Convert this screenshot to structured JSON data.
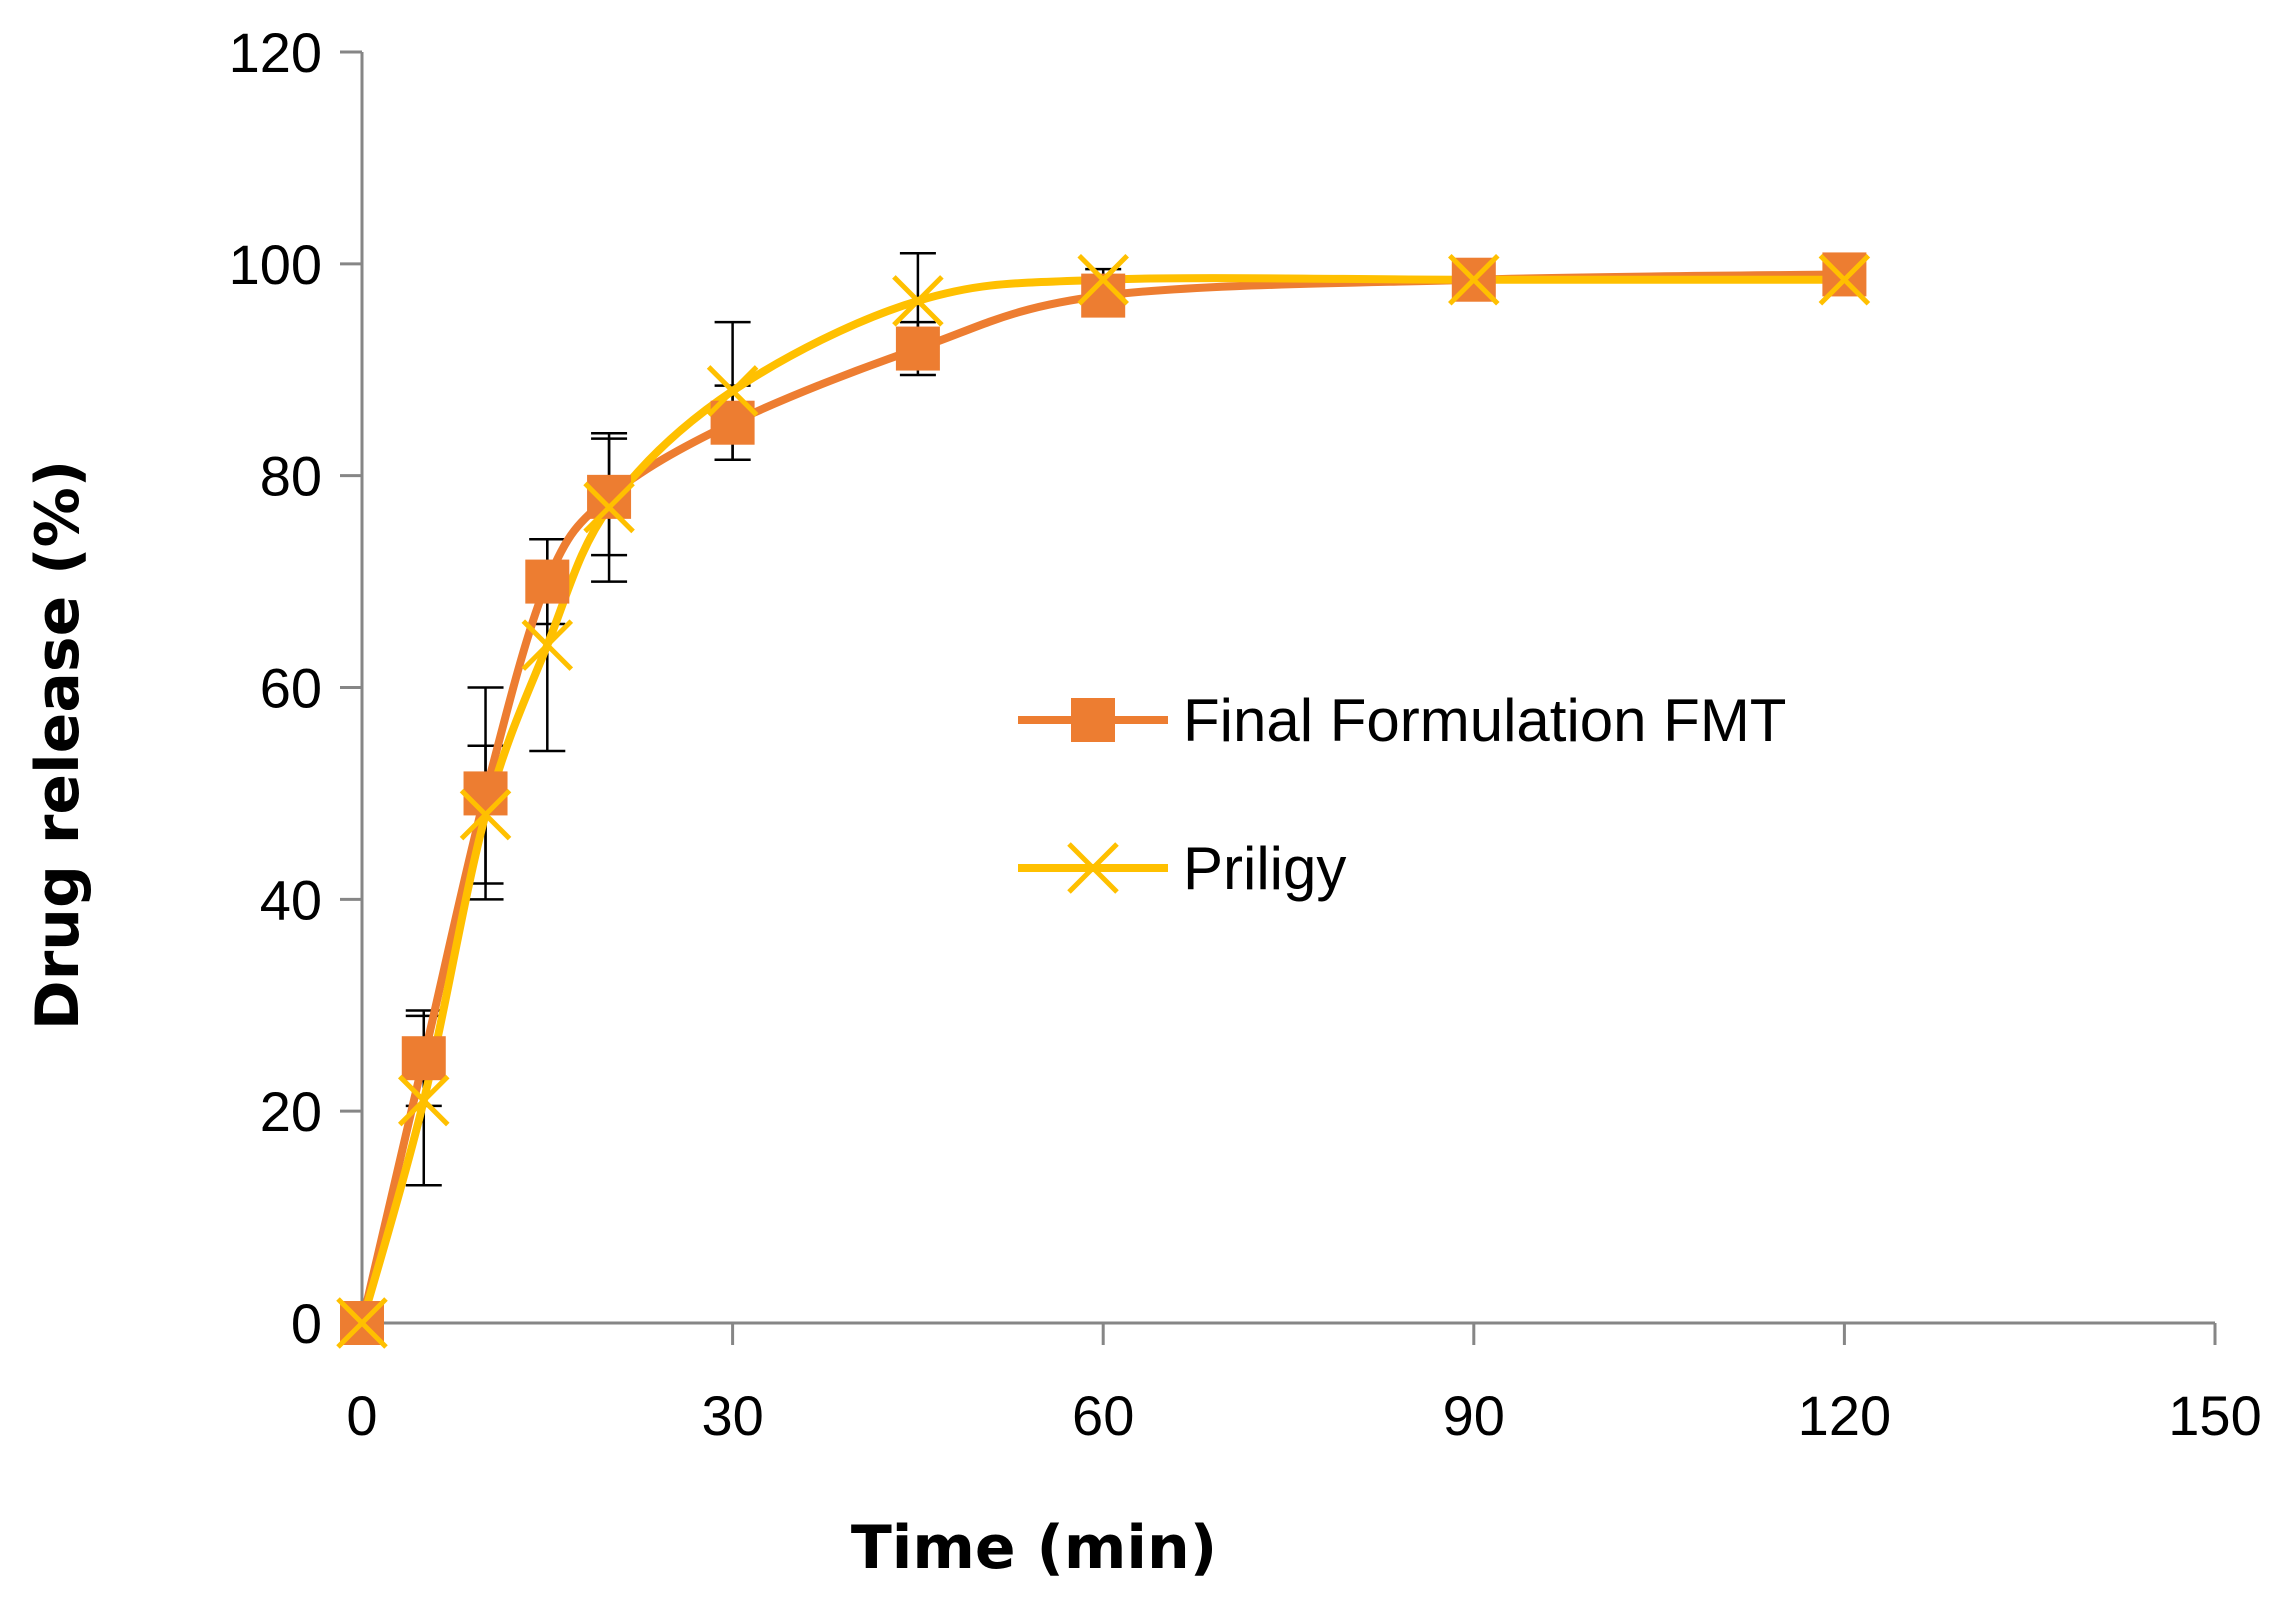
{
  "chart_data": {
    "type": "line",
    "title": "",
    "xlabel": "Time (min)",
    "ylabel": "Drug release (%)",
    "xlim": [
      0,
      150
    ],
    "ylim": [
      0,
      120
    ],
    "xticks": [
      0,
      30,
      60,
      90,
      120,
      150
    ],
    "yticks": [
      0,
      20,
      40,
      60,
      80,
      100,
      120
    ],
    "grid": false,
    "legend_position": "center-right",
    "x": [
      0,
      5,
      10,
      15,
      20,
      30,
      45,
      60,
      90,
      120
    ],
    "series": [
      {
        "name": "Final Formulation FMT",
        "color": "#ED7D31",
        "marker": "square",
        "values": [
          0,
          25,
          50,
          70,
          78,
          85,
          92,
          97,
          98.5,
          99
        ],
        "error": [
          0,
          4.5,
          10,
          4,
          5.5,
          3.5,
          2.5,
          1.5,
          1,
          1
        ]
      },
      {
        "name": "Priligy",
        "color": "#FFC000",
        "marker": "x",
        "values": [
          0,
          21,
          48,
          64,
          77,
          88,
          96.5,
          98.5,
          98.5,
          98.5
        ],
        "error": [
          0,
          8,
          6.5,
          10,
          7,
          6.5,
          4.5,
          1,
          1,
          1
        ]
      }
    ]
  }
}
